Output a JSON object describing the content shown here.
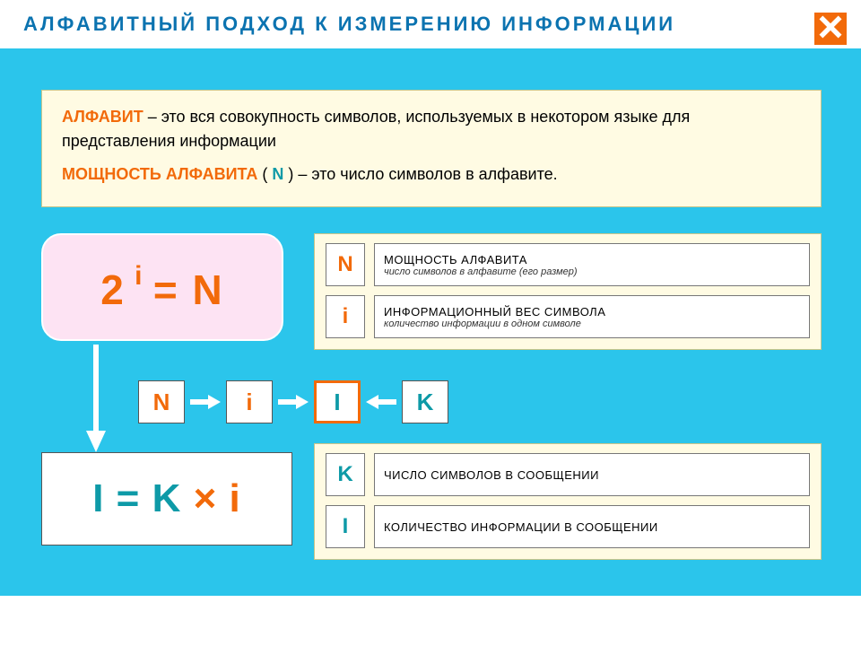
{
  "colors": {
    "bg_cyan": "#2bc5eb",
    "panel_cream": "#fffbe3",
    "panel_pink": "#fde3f3",
    "orange": "#f26a0a",
    "teal": "#0e9aa7",
    "blue_title": "#0b73b0"
  },
  "header": {
    "title": "АЛФАВИТНЫЙ  ПОДХОД  К  ИЗМЕРЕНИЮ  ИНФОРМАЦИИ",
    "close_label": "close"
  },
  "definitions": {
    "term1": "АЛФАВИТ",
    "desc1": " – это вся совокупность символов, используемых в некотором языке  для  представления информации",
    "term2": "МОЩНОСТЬ  АЛФАВИТА",
    "paren_open": " ( ",
    "n_var": "N",
    "paren_close": " ) ",
    "desc2": "– это  число  символов  в  алфавите."
  },
  "formula1": {
    "base": "2",
    "exp": " i ",
    "eq": " = ",
    "rhs": "N"
  },
  "legend1": {
    "rows": [
      {
        "sym": "N",
        "sym_color": "#f26a0a",
        "title": "МОЩНОСТЬ  АЛФАВИТА",
        "sub": "число  символов  в  алфавите (его  размер)"
      },
      {
        "sym": "i",
        "sym_color": "#f26a0a",
        "title": "ИНФОРМАЦИОННЫЙ  ВЕС  СИМВОЛА",
        "sub": "количество  информации  в  одном  символе"
      }
    ]
  },
  "chain": {
    "nodes": [
      {
        "label": "N",
        "color": "#f26a0a",
        "hl": false
      },
      {
        "label": "i",
        "color": "#f26a0a",
        "hl": false
      },
      {
        "label": "I",
        "color": "#0e9aa7",
        "hl": true
      },
      {
        "label": "K",
        "color": "#0e9aa7",
        "hl": false
      }
    ],
    "arrows": [
      "right",
      "right",
      "left"
    ]
  },
  "formula2": {
    "lhs": "I",
    "eq": " = ",
    "k": "K",
    "times": " × ",
    "i": "i",
    "colors": {
      "lhs": "#0e9aa7",
      "k": "#0e9aa7",
      "times": "#f26a0a",
      "i": "#f26a0a"
    }
  },
  "legend2": {
    "rows": [
      {
        "sym": "K",
        "sym_color": "#0e9aa7",
        "title": "ЧИСЛО  СИМВОЛОВ  В  СООБЩЕНИИ",
        "sub": ""
      },
      {
        "sym": "I",
        "sym_color": "#0e9aa7",
        "title": "КОЛИЧЕСТВО  ИНФОРМАЦИИ  В  СООБЩЕНИИ",
        "sub": ""
      }
    ]
  }
}
